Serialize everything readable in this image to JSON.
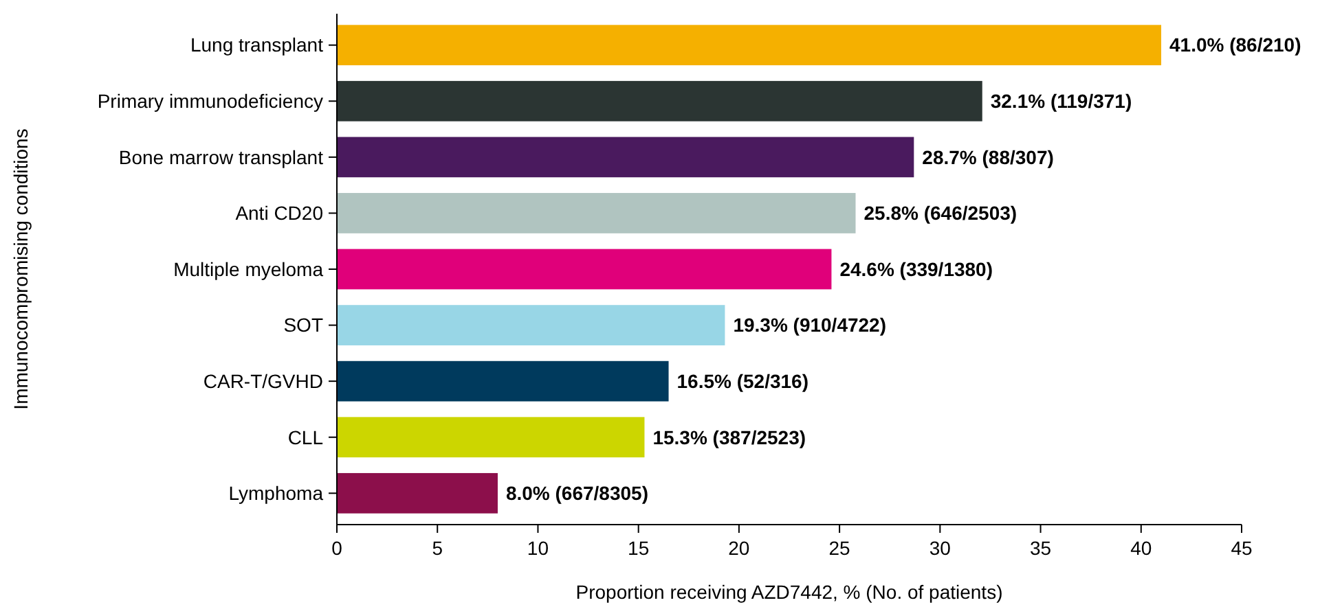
{
  "chart_data": {
    "type": "bar",
    "orientation": "horizontal",
    "xlabel": "Proportion receiving AZD7442, % (No. of patients)",
    "ylabel": "Immunocompromising conditions",
    "categories": [
      "Lung transplant",
      "Primary immunodeficiency",
      "Bone marrow transplant",
      "Anti CD20",
      "Multiple myeloma",
      "SOT",
      "CAR-T/GVHD",
      "CLL",
      "Lymphoma"
    ],
    "values": [
      41.0,
      32.1,
      28.7,
      25.8,
      24.6,
      19.3,
      16.5,
      15.3,
      8.0
    ],
    "colors": [
      "#f5b000",
      "#2b3533",
      "#4a1a5e",
      "#b0c4c0",
      "#e0007a",
      "#98d6e6",
      "#003a5d",
      "#ccd600",
      "#8c0f4b"
    ],
    "value_labels": [
      "41.0% (86/210)",
      "32.1% (119/371)",
      "28.7% (88/307)",
      "25.8% (646/2503)",
      "24.6% (339/1380)",
      "19.3% (910/4722)",
      "16.5% (52/316)",
      "15.3% (387/2523)",
      "8.0% (667/8305)"
    ],
    "xlim": [
      0,
      45
    ],
    "xticks": [
      0,
      5,
      10,
      15,
      20,
      25,
      30,
      35,
      40,
      45
    ],
    "grid": false
  }
}
